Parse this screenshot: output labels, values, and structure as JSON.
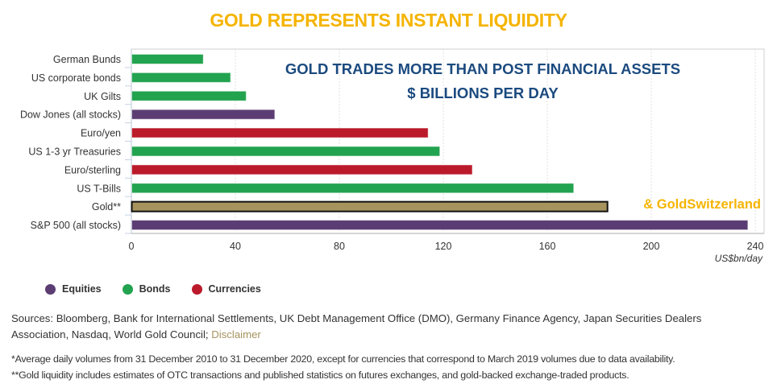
{
  "header": {
    "title": "GOLD REPRESENTS INSTANT LIQUIDITY"
  },
  "chart_data": {
    "type": "bar",
    "orientation": "horizontal",
    "title": "GOLD TRADES MORE THAN POST FINANCIAL ASSETS",
    "subtitle": "$ BILLIONS PER DAY",
    "watermark": "& GoldSwitzerland",
    "xlabel": "US$bn/day",
    "ylabel": "",
    "xlim": [
      0,
      240
    ],
    "xticks": [
      0,
      40,
      80,
      120,
      160,
      200,
      240
    ],
    "grid": true,
    "legend_position": "bottom-left",
    "categories": [
      "German Bunds",
      "US corporate bonds",
      "UK Gilts",
      "Dow Jones (all stocks)",
      "Euro/yen",
      "US 1-3 yr Treasuries",
      "Euro/sterling",
      "US T-Bills",
      "Gold**",
      "S&P 500 (all stocks)"
    ],
    "values": [
      27.5,
      38,
      44,
      55,
      114,
      118.5,
      131,
      170,
      183,
      237
    ],
    "groups": [
      "Bonds",
      "Bonds",
      "Bonds",
      "Equities",
      "Currencies",
      "Bonds",
      "Currencies",
      "Bonds",
      "Gold",
      "Equities"
    ],
    "colors": {
      "Equities": "#5b3d73",
      "Bonds": "#22a34f",
      "Currencies": "#bb1a2a",
      "Gold": "#a7935e"
    },
    "legend": [
      {
        "label": "Equities",
        "color": "#5b3d73"
      },
      {
        "label": "Bonds",
        "color": "#22a34f"
      },
      {
        "label": "Currencies",
        "color": "#bb1a2a"
      }
    ]
  },
  "footer": {
    "sources_text": "Sources: Bloomberg, Bank for International Settlements, UK Debt Management Office (DMO), Germany Finance Agency, Japan Securities Dealers Association, Nasdaq, World Gold Council; ",
    "disclaimer_link": "Disclaimer",
    "note1": "*Average daily volumes from 31 December 2010 to 31 December 2020, except for currencies that correspond to March 2019 volumes due to data availability.",
    "note2": "**Gold liquidity includes estimates of OTC transactions and published statistics on futures exchanges, and gold-backed exchange-traded products."
  }
}
